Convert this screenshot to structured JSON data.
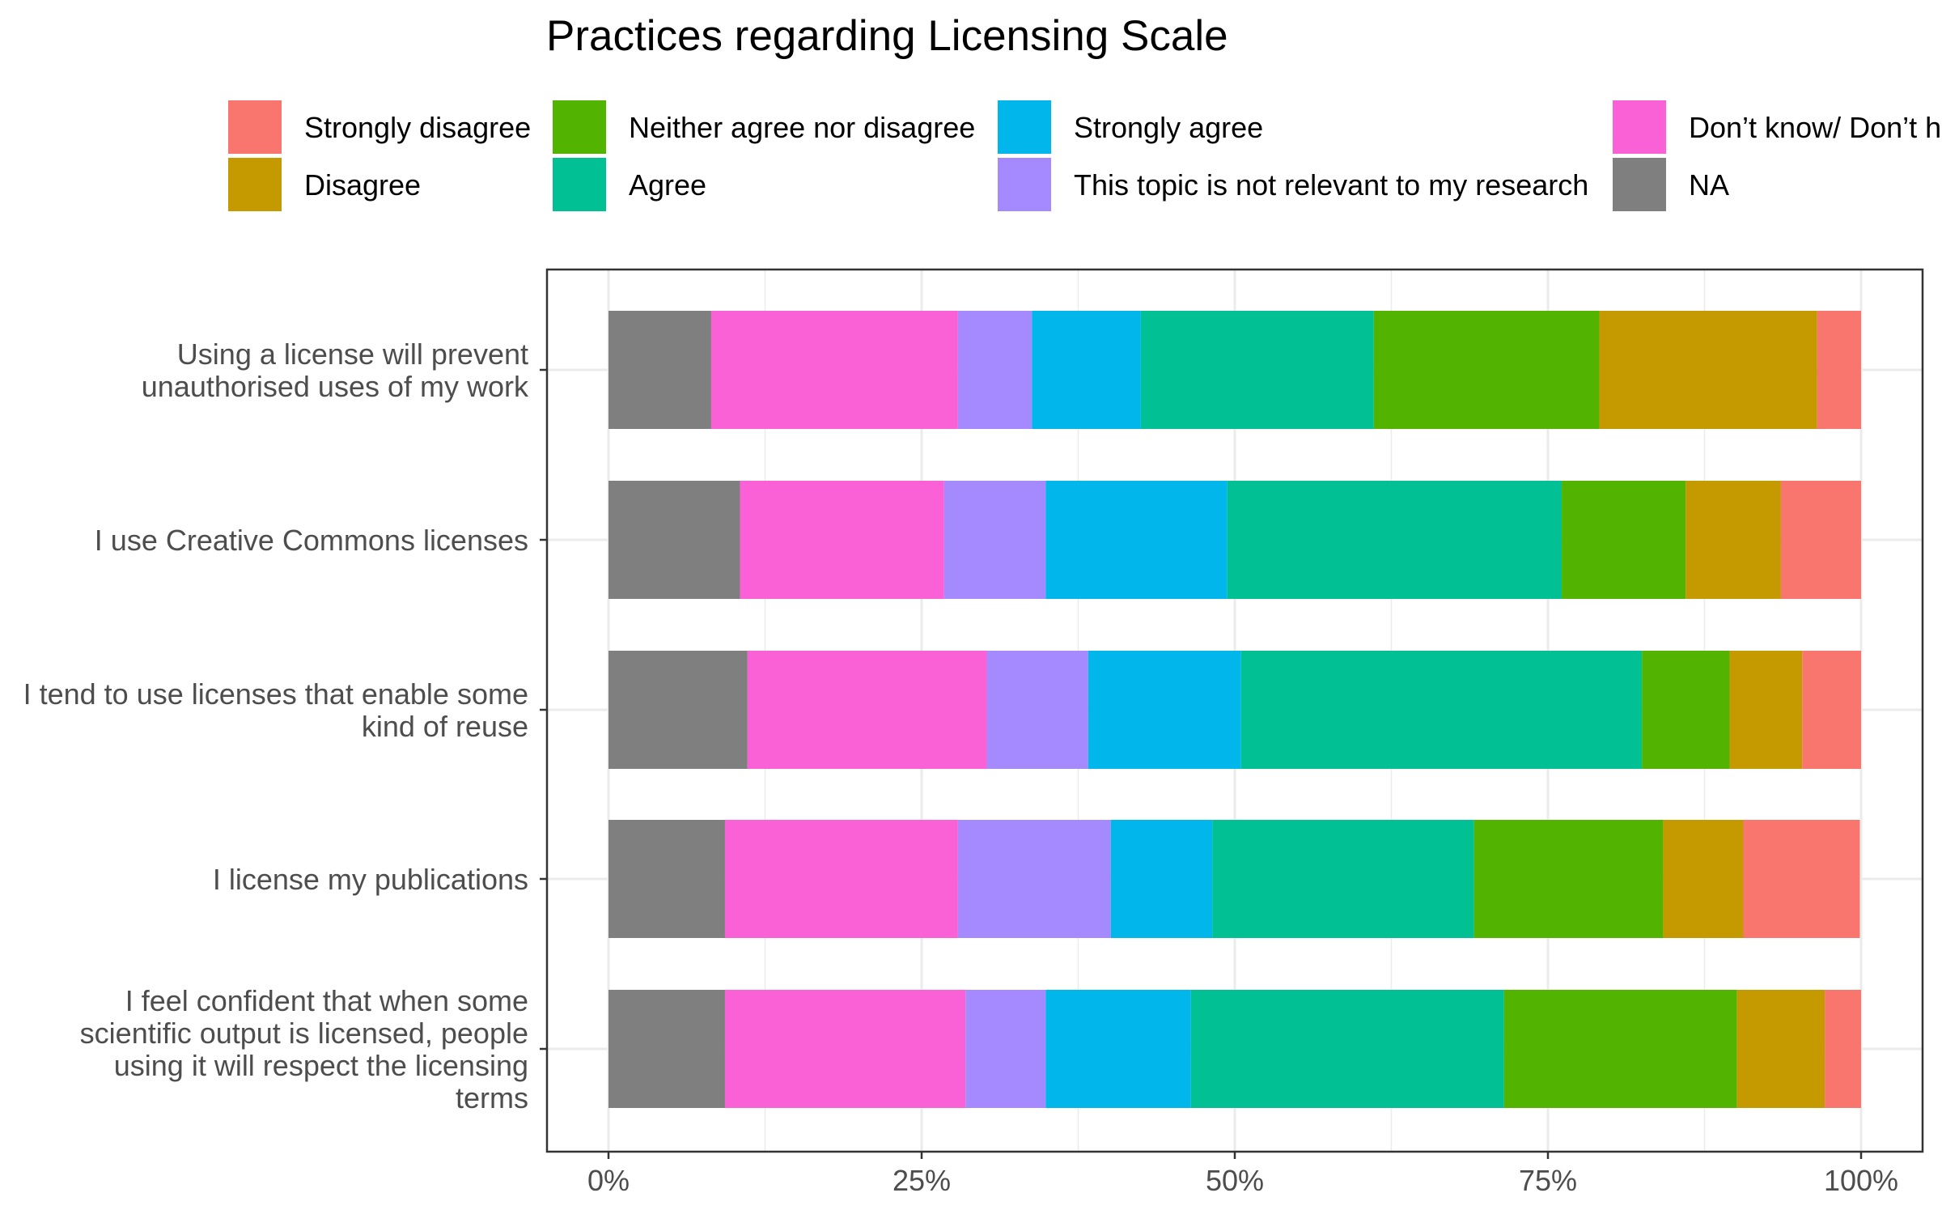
{
  "chart_data": {
    "type": "bar",
    "orientation": "horizontal",
    "stacked": "percent",
    "title": "Practices regarding Licensing Scale",
    "xlabel": "",
    "ylabel": "",
    "xlim": [
      0,
      1
    ],
    "x_ticks": [
      "0%",
      "25%",
      "50%",
      "75%",
      "100%"
    ],
    "grid": true,
    "legend_position": "top",
    "categories": [
      [
        "Using a license will prevent",
        "unauthorised uses of my work"
      ],
      [
        "I use Creative Commons licenses"
      ],
      [
        "I tend to use licenses that enable some",
        "kind of reuse"
      ],
      [
        "I license my publications"
      ],
      [
        "I feel confident that when some",
        "scientific output is licensed, people",
        "using it will respect the licensing",
        "terms"
      ]
    ],
    "series": [
      {
        "name": "NA",
        "color": "#7f7f7f",
        "values": [
          0.082,
          0.105,
          0.111,
          0.093,
          0.093
        ]
      },
      {
        "name": "Don’t know/ Don’t h",
        "color": "#fb61d7",
        "values": [
          0.197,
          0.163,
          0.191,
          0.186,
          0.192
        ]
      },
      {
        "name": "This topic is not relevant to my research",
        "color": "#a58aff",
        "values": [
          0.059,
          0.081,
          0.081,
          0.122,
          0.064
        ]
      },
      {
        "name": "Strongly agree",
        "color": "#00b6eb",
        "values": [
          0.087,
          0.145,
          0.122,
          0.081,
          0.116
        ]
      },
      {
        "name": "Agree",
        "color": "#00c094",
        "values": [
          0.186,
          0.267,
          0.32,
          0.209,
          0.25
        ]
      },
      {
        "name": "Neither agree nor disagree",
        "color": "#53b400",
        "values": [
          0.18,
          0.099,
          0.07,
          0.151,
          0.186
        ]
      },
      {
        "name": "Disagree",
        "color": "#c49a00",
        "values": [
          0.174,
          0.076,
          0.058,
          0.064,
          0.07
        ]
      },
      {
        "name": "Strongly disagree",
        "color": "#f8766d",
        "values": [
          0.035,
          0.064,
          0.047,
          0.093,
          0.029
        ]
      }
    ],
    "legend": [
      [
        "Strongly disagree",
        "Neither agree nor disagree",
        "Strongly agree",
        "Don’t know/ Don’t h"
      ],
      [
        "Disagree",
        "Agree",
        "This topic is not relevant to my research",
        "NA"
      ]
    ]
  }
}
